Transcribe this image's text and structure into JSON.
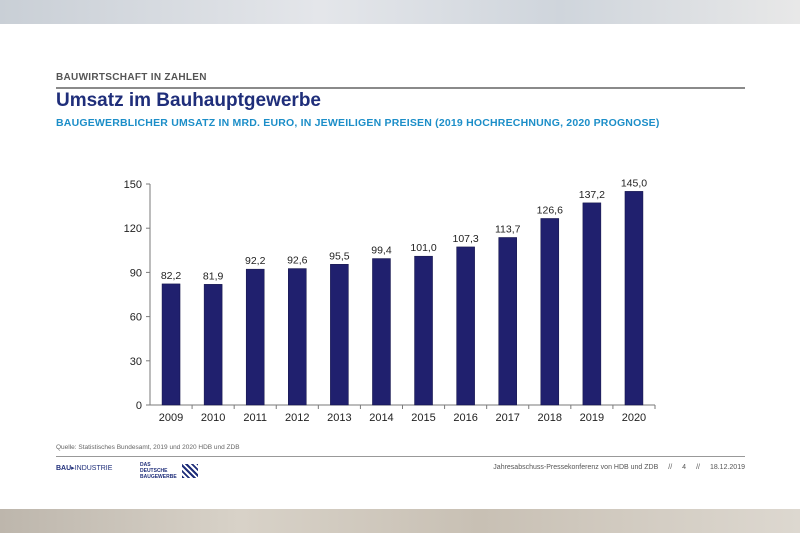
{
  "header": {
    "section": "BAUWIRTSCHAFT IN ZAHLEN",
    "title": "Umsatz im Bauhauptgewerbe",
    "subtitle": "BAUGEWERBLICHER UMSATZ IN MRD. EURO, IN JEWEILIGEN PREISEN (2019 HOCHRECHNUNG, 2020 PROGNOSE)"
  },
  "chart_data": {
    "type": "bar",
    "categories": [
      "2009",
      "2010",
      "2011",
      "2012",
      "2013",
      "2014",
      "2015",
      "2016",
      "2017",
      "2018",
      "2019",
      "2020"
    ],
    "values": [
      82.2,
      81.9,
      92.2,
      92.6,
      95.5,
      99.4,
      101.0,
      107.3,
      113.7,
      126.6,
      137.2,
      145.0
    ],
    "value_labels": [
      "82,2",
      "81,9",
      "92,2",
      "92,6",
      "95,5",
      "99,4",
      "101,0",
      "107,3",
      "113,7",
      "126,6",
      "137,2",
      "145,0"
    ],
    "title": "",
    "xlabel": "",
    "ylabel": "",
    "ylim": [
      0,
      150
    ],
    "yticks": [
      0,
      30,
      60,
      90,
      120,
      150
    ],
    "grid": false,
    "bar_color": "#20206e"
  },
  "footer": {
    "source": "Quelle: Statistisches Bundesamt, 2019 und 2020 HDB und ZDB",
    "logo1_bold": "BAU",
    "logo1_rest": "INDUSTRIE",
    "logo2_line1": "DAS DEUTSCHE",
    "logo2_line2": "BAUGEWERBE",
    "event": "Jahresabschuss-Pressekonferenz von HDB und ZDB",
    "sep1": "//",
    "page": "4",
    "sep2": "//",
    "date": "18.12.2019"
  }
}
